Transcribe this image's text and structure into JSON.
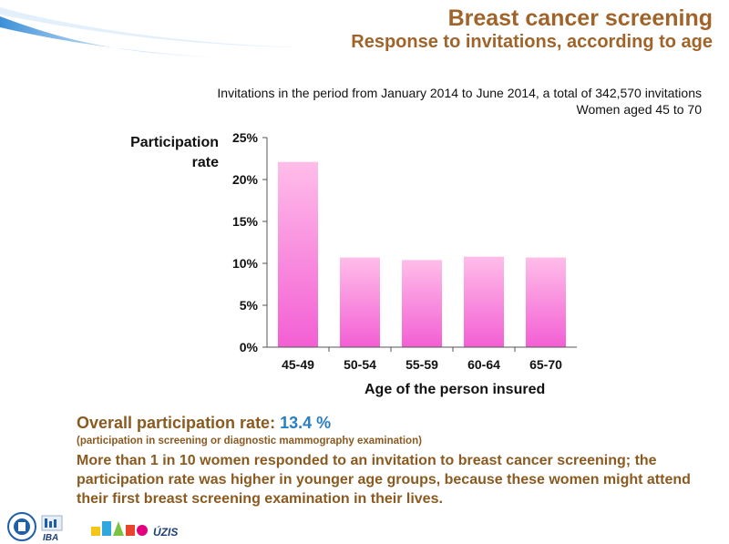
{
  "header": {
    "title": "Breast cancer screening",
    "subtitle": "Response to invitations, according to age"
  },
  "info": {
    "line1": "Invitations in the period from January 2014 to June 2014, a total of 342,570 invitations",
    "line2": "Women aged 45 to 70"
  },
  "chart_data": {
    "type": "bar",
    "categories": [
      "45-49",
      "50-54",
      "55-59",
      "60-64",
      "65-70"
    ],
    "values": [
      22.1,
      10.7,
      10.4,
      10.8,
      10.7
    ],
    "ylabel_line1": "Participation",
    "ylabel_line2": "rate",
    "xlabel": "Age of the person insured",
    "ylim": [
      0,
      25
    ],
    "yticks": [
      "0%",
      "5%",
      "10%",
      "15%",
      "20%",
      "25%"
    ],
    "bar_color_top": "#ffbde9",
    "bar_color_bottom": "#f35fd4",
    "grid": false
  },
  "summary": {
    "overall_label": "Overall participation rate:",
    "overall_value": "13.4 %",
    "paren": "(participation in screening or diagnostic mammography examination)",
    "paragraph": "More than 1 in 10 women responded to an invitation to breast cancer screening; the participation rate was higher in younger age groups, because these women might attend their first breast screening examination in their lives."
  },
  "logos": {
    "iba_text": "IBA",
    "uzis_text": "ÚZIS"
  },
  "colors": {
    "title": "#a0642a",
    "accent_blue": "#2a7ec0",
    "text_brown": "#8a5a20"
  }
}
